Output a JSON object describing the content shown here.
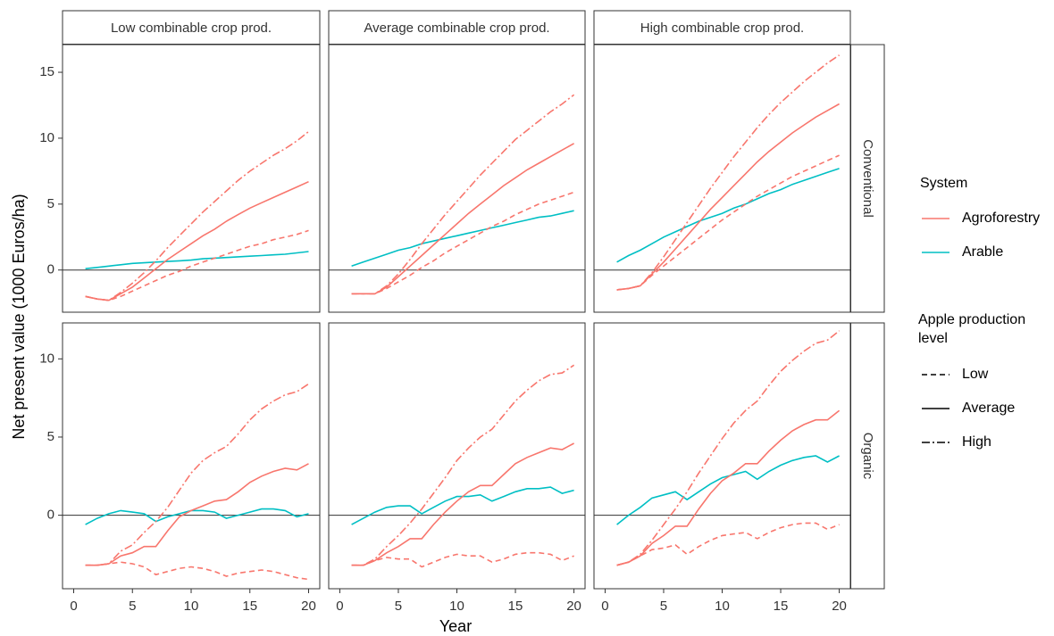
{
  "chart_data": {
    "type": "line",
    "xlabel": "Year",
    "ylabel": "Net present value (1000 Euros/ha)",
    "x": [
      1,
      2,
      3,
      4,
      5,
      6,
      7,
      8,
      9,
      10,
      11,
      12,
      13,
      14,
      15,
      16,
      17,
      18,
      19,
      20
    ],
    "xlim": [
      -0.95,
      20.95
    ],
    "xticks": [
      0,
      5,
      10,
      15,
      20
    ],
    "hline": 0,
    "columns": [
      "Low combinable crop prod.",
      "Average combinable crop prod.",
      "High combinable crop prod."
    ],
    "legend": {
      "system": {
        "title": "System",
        "items": [
          {
            "name": "Agroforestry",
            "color": "#F8766D"
          },
          {
            "name": "Arable",
            "color": "#00BFC4"
          }
        ]
      },
      "level": {
        "title": "Apple production level",
        "items": [
          {
            "name": "Low",
            "dash": "6,4"
          },
          {
            "name": "Average",
            "dash": "none"
          },
          {
            "name": "High",
            "dash": "9,3,2,3"
          }
        ]
      }
    },
    "rows": [
      {
        "label": "Conventional",
        "ylim": [
          -3.2,
          17.1
        ],
        "yticks": [
          0,
          5,
          10,
          15
        ],
        "panels": [
          {
            "series": [
              {
                "system": "Arable",
                "values": [
                  0.1,
                  0.2,
                  0.3,
                  0.4,
                  0.5,
                  0.55,
                  0.6,
                  0.65,
                  0.7,
                  0.75,
                  0.85,
                  0.9,
                  0.95,
                  1.0,
                  1.05,
                  1.1,
                  1.15,
                  1.2,
                  1.3,
                  1.4
                ]
              },
              {
                "system": "Agroforestry",
                "level": "Low",
                "values": [
                  -2,
                  -2.2,
                  -2.3,
                  -2.0,
                  -1.6,
                  -1.2,
                  -0.8,
                  -0.4,
                  -0.1,
                  0.3,
                  0.6,
                  0.9,
                  1.2,
                  1.5,
                  1.8,
                  2.0,
                  2.3,
                  2.5,
                  2.7,
                  3.0
                ]
              },
              {
                "system": "Agroforestry",
                "level": "Average",
                "values": [
                  -2,
                  -2.2,
                  -2.3,
                  -1.8,
                  -1.3,
                  -0.6,
                  0.1,
                  0.8,
                  1.4,
                  2.0,
                  2.6,
                  3.1,
                  3.7,
                  4.2,
                  4.7,
                  5.1,
                  5.5,
                  5.9,
                  6.3,
                  6.7
                ]
              },
              {
                "system": "Agroforestry",
                "level": "High",
                "values": [
                  -2,
                  -2.2,
                  -2.3,
                  -1.7,
                  -1.0,
                  -0.2,
                  0.7,
                  1.7,
                  2.6,
                  3.5,
                  4.4,
                  5.2,
                  6.0,
                  6.8,
                  7.5,
                  8.1,
                  8.7,
                  9.2,
                  9.8,
                  10.5
                ]
              }
            ]
          },
          {
            "series": [
              {
                "system": "Arable",
                "values": [
                  0.3,
                  0.6,
                  0.9,
                  1.2,
                  1.5,
                  1.7,
                  2.0,
                  2.2,
                  2.4,
                  2.6,
                  2.8,
                  3.0,
                  3.2,
                  3.4,
                  3.6,
                  3.8,
                  4.0,
                  4.1,
                  4.3,
                  4.5
                ]
              },
              {
                "system": "Agroforestry",
                "level": "Low",
                "values": [
                  -1.8,
                  -1.8,
                  -1.8,
                  -1.4,
                  -0.9,
                  -0.4,
                  0.2,
                  0.7,
                  1.3,
                  1.8,
                  2.3,
                  2.8,
                  3.3,
                  3.7,
                  4.2,
                  4.6,
                  5.0,
                  5.3,
                  5.6,
                  5.9
                ]
              },
              {
                "system": "Agroforestry",
                "level": "Average",
                "values": [
                  -1.8,
                  -1.8,
                  -1.8,
                  -1.3,
                  -0.5,
                  0.3,
                  1.1,
                  1.9,
                  2.7,
                  3.5,
                  4.3,
                  5.0,
                  5.7,
                  6.4,
                  7.0,
                  7.6,
                  8.1,
                  8.6,
                  9.1,
                  9.6
                ]
              },
              {
                "system": "Agroforestry",
                "level": "High",
                "values": [
                  -1.8,
                  -1.8,
                  -1.8,
                  -1.2,
                  -0.3,
                  0.8,
                  2.0,
                  3.1,
                  4.2,
                  5.2,
                  6.2,
                  7.2,
                  8.1,
                  9.0,
                  9.9,
                  10.6,
                  11.3,
                  12.0,
                  12.6,
                  13.3
                ]
              }
            ]
          },
          {
            "series": [
              {
                "system": "Arable",
                "values": [
                  0.6,
                  1.1,
                  1.5,
                  2.0,
                  2.5,
                  2.9,
                  3.3,
                  3.7,
                  4.0,
                  4.3,
                  4.7,
                  5.0,
                  5.4,
                  5.8,
                  6.1,
                  6.5,
                  6.8,
                  7.1,
                  7.4,
                  7.7
                ]
              },
              {
                "system": "Agroforestry",
                "level": "Low",
                "values": [
                  -1.5,
                  -1.4,
                  -1.2,
                  -0.4,
                  0.3,
                  1.0,
                  1.7,
                  2.4,
                  3.1,
                  3.8,
                  4.4,
                  5.0,
                  5.6,
                  6.1,
                  6.6,
                  7.1,
                  7.5,
                  7.9,
                  8.3,
                  8.7
                ]
              },
              {
                "system": "Agroforestry",
                "level": "Average",
                "values": [
                  -1.5,
                  -1.4,
                  -1.2,
                  -0.3,
                  0.6,
                  1.6,
                  2.6,
                  3.6,
                  4.6,
                  5.5,
                  6.4,
                  7.3,
                  8.2,
                  9.0,
                  9.7,
                  10.4,
                  11.0,
                  11.6,
                  12.1,
                  12.6
                ]
              },
              {
                "system": "Agroforestry",
                "level": "High",
                "values": [
                  -1.5,
                  -1.4,
                  -1.2,
                  -0.2,
                  1.0,
                  2.3,
                  3.6,
                  4.9,
                  6.2,
                  7.4,
                  8.6,
                  9.7,
                  10.8,
                  11.8,
                  12.7,
                  13.5,
                  14.3,
                  15.0,
                  15.7,
                  16.3
                ]
              }
            ]
          }
        ]
      },
      {
        "label": "Organic",
        "ylim": [
          -4.7,
          12.3
        ],
        "yticks": [
          0,
          5,
          10
        ],
        "panels": [
          {
            "series": [
              {
                "system": "Arable",
                "values": [
                  -0.6,
                  -0.2,
                  0.1,
                  0.3,
                  0.2,
                  0.1,
                  -0.4,
                  -0.1,
                  0.1,
                  0.3,
                  0.3,
                  0.2,
                  -0.2,
                  0.0,
                  0.2,
                  0.4,
                  0.4,
                  0.3,
                  -0.1,
                  0.1
                ]
              },
              {
                "system": "Agroforestry",
                "level": "Low",
                "values": [
                  -3.2,
                  -3.2,
                  -3.1,
                  -3.0,
                  -3.1,
                  -3.3,
                  -3.8,
                  -3.6,
                  -3.4,
                  -3.3,
                  -3.4,
                  -3.6,
                  -3.9,
                  -3.7,
                  -3.6,
                  -3.5,
                  -3.6,
                  -3.8,
                  -4.0,
                  -4.1
                ]
              },
              {
                "system": "Agroforestry",
                "level": "Average",
                "values": [
                  -3.2,
                  -3.2,
                  -3.1,
                  -2.6,
                  -2.4,
                  -2.0,
                  -2.0,
                  -1.0,
                  -0.1,
                  0.3,
                  0.6,
                  0.9,
                  1.0,
                  1.5,
                  2.1,
                  2.5,
                  2.8,
                  3.0,
                  2.9,
                  3.3
                ]
              },
              {
                "system": "Agroforestry",
                "level": "High",
                "values": [
                  -3.2,
                  -3.2,
                  -3.1,
                  -2.3,
                  -1.9,
                  -1.1,
                  -0.4,
                  0.5,
                  1.6,
                  2.7,
                  3.5,
                  4.0,
                  4.4,
                  5.2,
                  6.1,
                  6.8,
                  7.3,
                  7.7,
                  7.9,
                  8.4
                ]
              }
            ]
          },
          {
            "series": [
              {
                "system": "Arable",
                "values": [
                  -0.6,
                  -0.2,
                  0.2,
                  0.5,
                  0.6,
                  0.6,
                  0.1,
                  0.5,
                  0.9,
                  1.2,
                  1.2,
                  1.3,
                  0.9,
                  1.2,
                  1.5,
                  1.7,
                  1.7,
                  1.8,
                  1.4,
                  1.6
                ]
              },
              {
                "system": "Agroforestry",
                "level": "Low",
                "values": [
                  -3.2,
                  -3.2,
                  -2.9,
                  -2.7,
                  -2.8,
                  -2.8,
                  -3.3,
                  -3.0,
                  -2.7,
                  -2.5,
                  -2.6,
                  -2.6,
                  -3.0,
                  -2.8,
                  -2.5,
                  -2.4,
                  -2.4,
                  -2.5,
                  -2.9,
                  -2.6
                ]
              },
              {
                "system": "Agroforestry",
                "level": "Average",
                "values": [
                  -3.2,
                  -3.2,
                  -2.9,
                  -2.4,
                  -2.0,
                  -1.5,
                  -1.5,
                  -0.6,
                  0.2,
                  0.9,
                  1.5,
                  1.9,
                  1.9,
                  2.6,
                  3.3,
                  3.7,
                  4.0,
                  4.3,
                  4.2,
                  4.6
                ]
              },
              {
                "system": "Agroforestry",
                "level": "High",
                "values": [
                  -3.2,
                  -3.2,
                  -2.8,
                  -2.0,
                  -1.3,
                  -0.5,
                  0.4,
                  1.4,
                  2.4,
                  3.5,
                  4.3,
                  5.0,
                  5.5,
                  6.4,
                  7.3,
                  8.0,
                  8.6,
                  9.0,
                  9.1,
                  9.6
                ]
              }
            ]
          },
          {
            "series": [
              {
                "system": "Arable",
                "values": [
                  -0.6,
                  0.0,
                  0.5,
                  1.1,
                  1.3,
                  1.5,
                  1.0,
                  1.5,
                  2.0,
                  2.4,
                  2.6,
                  2.8,
                  2.3,
                  2.8,
                  3.2,
                  3.5,
                  3.7,
                  3.8,
                  3.4,
                  3.8
                ]
              },
              {
                "system": "Agroforestry",
                "level": "Low",
                "values": [
                  -3.2,
                  -3.0,
                  -2.6,
                  -2.2,
                  -2.1,
                  -1.9,
                  -2.5,
                  -2.0,
                  -1.6,
                  -1.3,
                  -1.2,
                  -1.1,
                  -1.5,
                  -1.1,
                  -0.8,
                  -0.6,
                  -0.5,
                  -0.5,
                  -0.9,
                  -0.6
                ]
              },
              {
                "system": "Agroforestry",
                "level": "Average",
                "values": [
                  -3.2,
                  -3.0,
                  -2.6,
                  -1.8,
                  -1.3,
                  -0.7,
                  -0.7,
                  0.4,
                  1.4,
                  2.2,
                  2.7,
                  3.3,
                  3.3,
                  4.1,
                  4.8,
                  5.4,
                  5.8,
                  6.1,
                  6.1,
                  6.7
                ]
              },
              {
                "system": "Agroforestry",
                "level": "High",
                "values": [
                  -3.2,
                  -3.0,
                  -2.5,
                  -1.6,
                  -0.6,
                  0.4,
                  1.5,
                  2.7,
                  3.8,
                  4.9,
                  5.9,
                  6.7,
                  7.3,
                  8.3,
                  9.2,
                  9.9,
                  10.5,
                  11.0,
                  11.2,
                  11.8
                ]
              }
            ]
          }
        ]
      }
    ]
  }
}
